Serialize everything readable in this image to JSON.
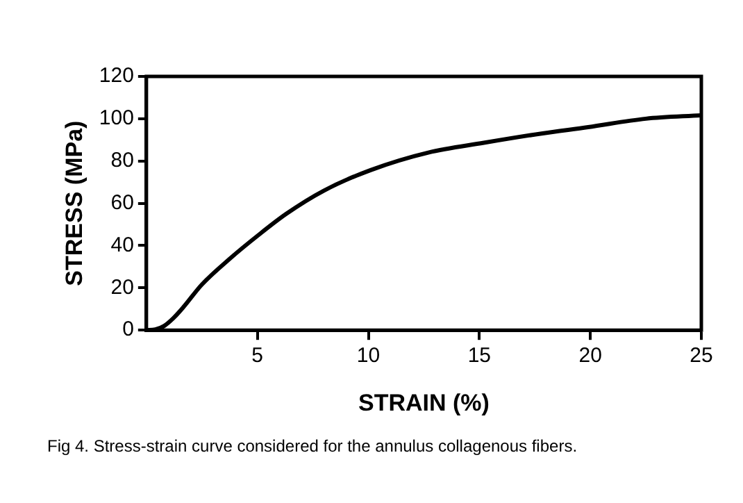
{
  "chart_data": {
    "type": "line",
    "xlabel": "STRAIN (%)",
    "ylabel": "STRESS (MPa)",
    "x": [
      0,
      0.4,
      0.8,
      1.2,
      1.66,
      2.5,
      3.78,
      5.05,
      6.3,
      8,
      10.1,
      12.7,
      15.2,
      17.8,
      19.9,
      22.5,
      25
    ],
    "series": [
      {
        "color": "#000000",
        "values": [
          0,
          0.3,
          2,
          5.5,
          10.8,
          21.6,
          34,
          45,
          55,
          66,
          75.7,
          84,
          88.6,
          93,
          96,
          100,
          101.6
        ]
      }
    ],
    "xlim": [
      0,
      25
    ],
    "xticks": [
      5,
      10,
      15,
      20,
      25
    ],
    "ylim": [
      0,
      120
    ],
    "yticks": [
      0,
      20,
      40,
      60,
      80,
      100,
      120
    ],
    "grid": false,
    "legend": false,
    "marker": "none",
    "line_style": "solid",
    "annotations": [
      "Fig 4. Stress-strain curve considered for the annulus collagenous fibers."
    ]
  }
}
